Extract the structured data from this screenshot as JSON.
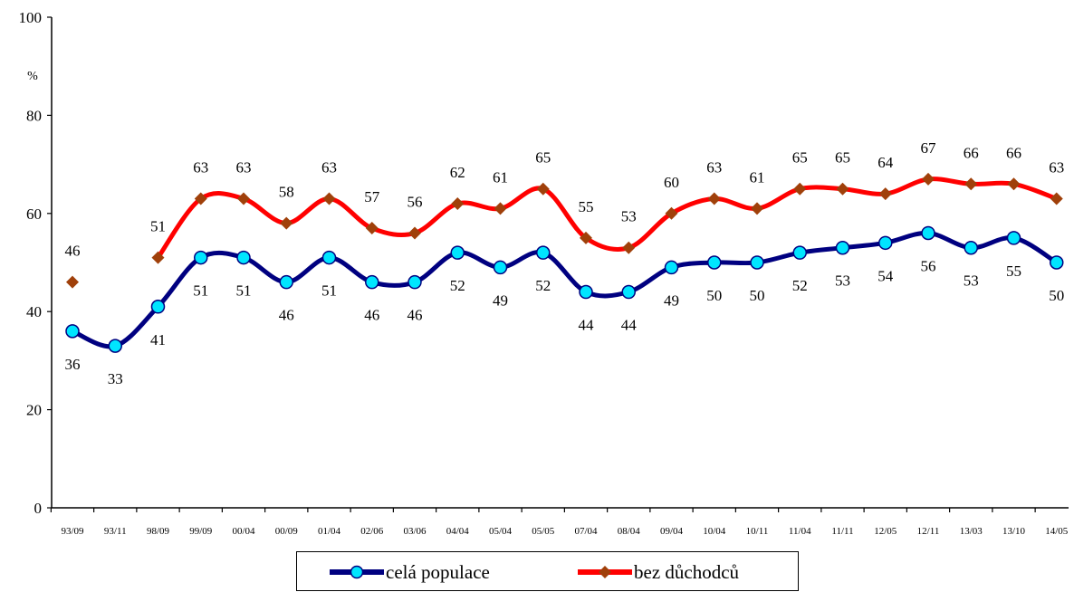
{
  "chart_data": {
    "type": "line",
    "ylabel": "%",
    "ylim": [
      0,
      100
    ],
    "yticks": [
      0,
      20,
      40,
      60,
      80,
      100
    ],
    "x": [
      "93/09",
      "93/11",
      "98/09",
      "99/09",
      "00/04",
      "00/09",
      "01/04",
      "02/06",
      "03/06",
      "04/04",
      "05/04",
      "05/05",
      "07/04",
      "08/04",
      "09/04",
      "10/04",
      "10/11",
      "11/04",
      "11/11",
      "12/05",
      "12/11",
      "13/03",
      "13/10",
      "14/05"
    ],
    "series": [
      {
        "name": "celá populace",
        "color": "#000080",
        "marker": "circle",
        "marker_color": "#00e5ff",
        "values": [
          36,
          33,
          41,
          51,
          51,
          46,
          51,
          46,
          46,
          52,
          49,
          52,
          44,
          44,
          49,
          50,
          50,
          52,
          53,
          54,
          56,
          53,
          55,
          50
        ]
      },
      {
        "name": "bez důchodců",
        "color": "#ff0000",
        "marker": "diamond",
        "marker_color": "#a0400a",
        "values": [
          46,
          null,
          51,
          63,
          63,
          58,
          63,
          57,
          56,
          62,
          61,
          65,
          55,
          53,
          60,
          63,
          61,
          65,
          65,
          64,
          67,
          66,
          66,
          63
        ]
      }
    ],
    "legend_position": "bottom",
    "grid": false
  }
}
